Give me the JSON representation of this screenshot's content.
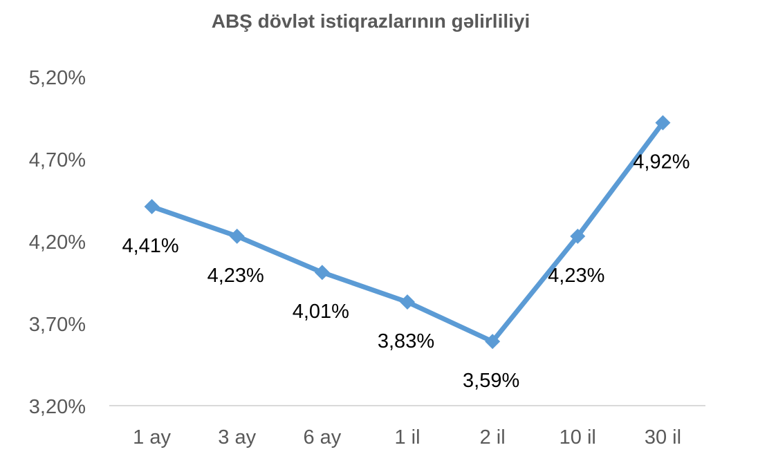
{
  "chart_data": {
    "type": "line",
    "title": "ABŞ dövlət istiqrazlarının gəlirliliyi",
    "categories": [
      "1 ay",
      "3 ay",
      "6 ay",
      "1 il",
      "2 il",
      "10 il",
      "30 il"
    ],
    "values": [
      4.41,
      4.23,
      4.01,
      3.83,
      3.59,
      4.23,
      4.92
    ],
    "value_labels": [
      "4,41%",
      "4,23%",
      "4,01%",
      "3,83%",
      "3,59%",
      "4,23%",
      "4,92%"
    ],
    "ylim": [
      3.2,
      5.2
    ],
    "yticks": [
      {
        "value": 3.2,
        "label": "3,20%"
      },
      {
        "value": 3.7,
        "label": "3,70%"
      },
      {
        "value": 4.2,
        "label": "4,20%"
      },
      {
        "value": 4.7,
        "label": "4,70%"
      },
      {
        "value": 5.2,
        "label": "5,20%"
      }
    ],
    "grid": false,
    "legend": "none",
    "marker": "diamond",
    "colors": {
      "series": "#5b9bd5",
      "axis": "#d9d9d9",
      "text": "#595959",
      "labels": "#000000"
    }
  }
}
